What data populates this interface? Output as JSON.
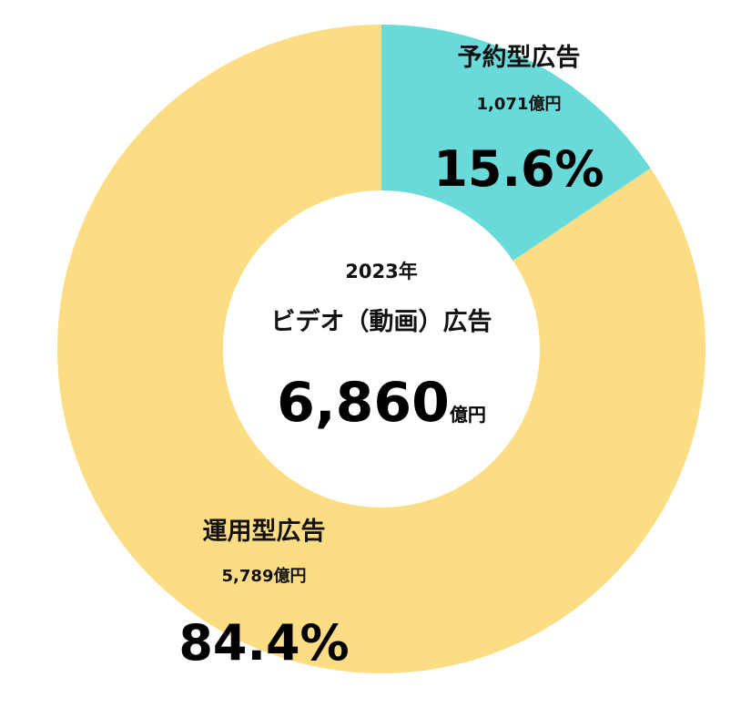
{
  "chart_data": {
    "type": "pie",
    "donut": true,
    "center": {
      "year": "2023年",
      "title": "ビデオ（動画）広告",
      "total": "6,860",
      "total_unit": "億円"
    },
    "slices": [
      {
        "name": "予約型広告",
        "amount": "1,071億円",
        "percent_label": "15.6%",
        "value": 15.6,
        "color": "#69DADA"
      },
      {
        "name": "運用型広告",
        "amount": "5,789億円",
        "percent_label": "84.4%",
        "value": 84.4,
        "color": "#FDDD84"
      }
    ],
    "start_angle": "12 o'clock",
    "direction": "clockwise"
  }
}
